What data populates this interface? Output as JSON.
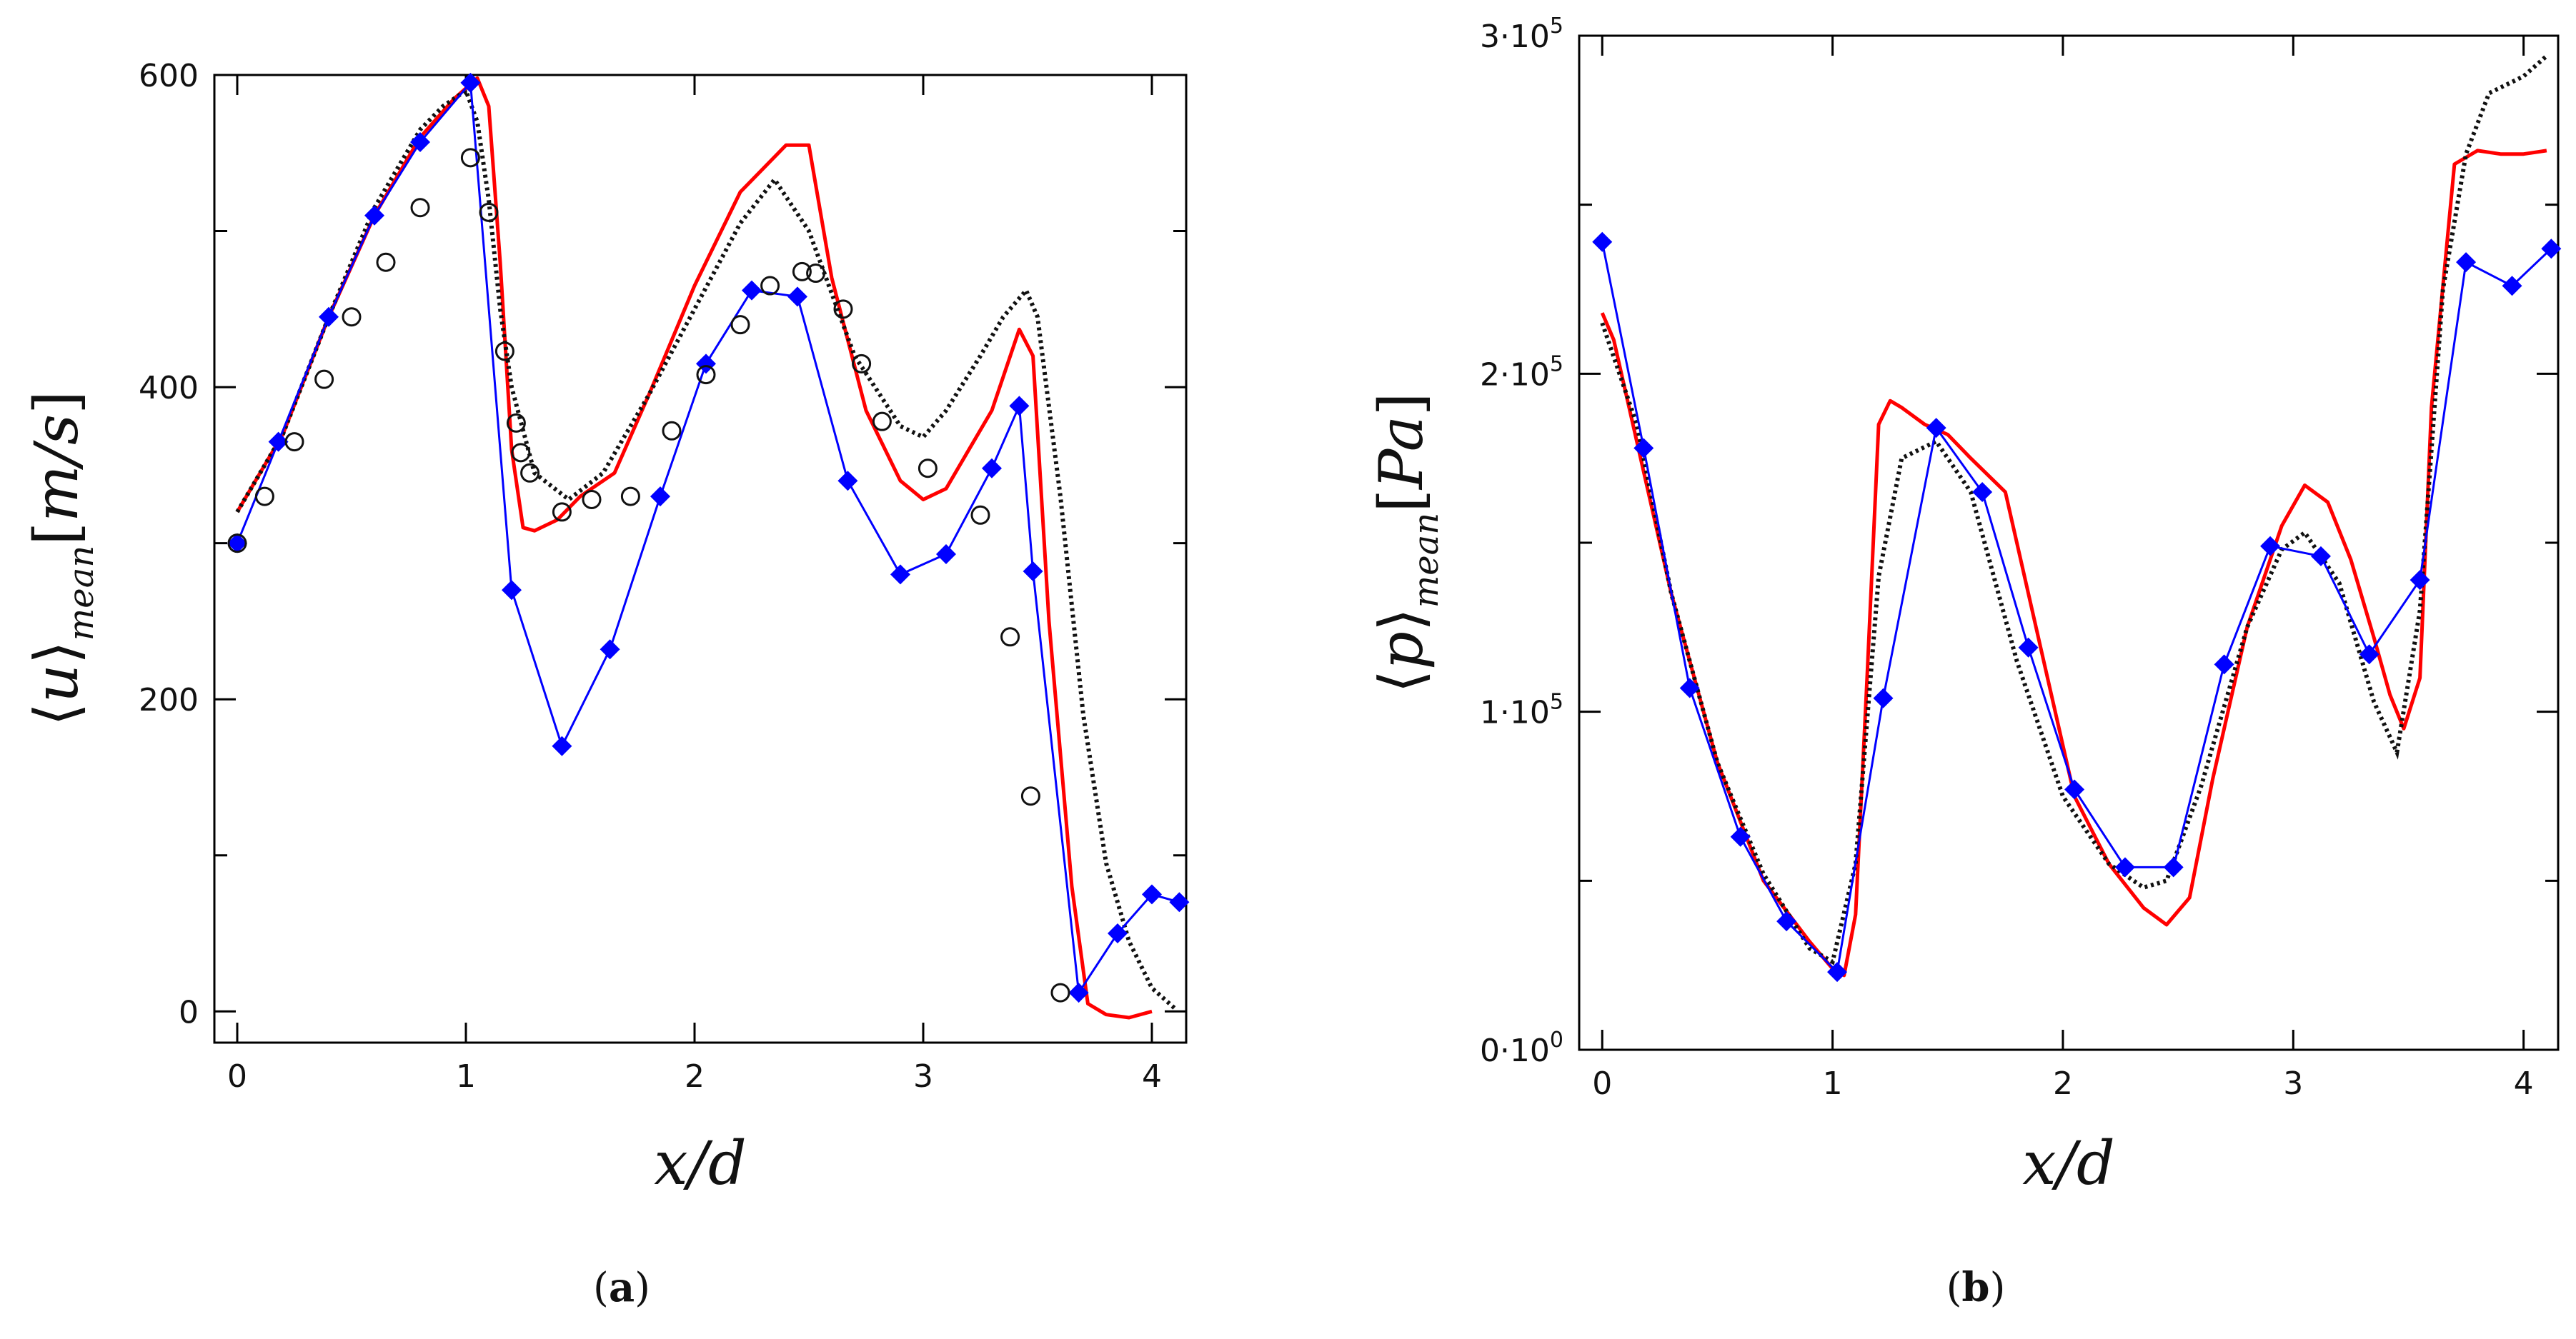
{
  "chart_data": [
    {
      "type": "line",
      "panel_label": "a",
      "xlabel": "x/d",
      "ylabel_symbol": "u",
      "ylabel_sub": "mean",
      "ylabel_unit": "m/s",
      "xlim": [
        -0.1,
        4.15
      ],
      "ylim": [
        -20,
        600
      ],
      "xticks": [
        "0",
        "1",
        "2",
        "3",
        "4"
      ],
      "xtick_values": [
        0,
        1,
        2,
        3,
        4
      ],
      "yticks": [
        "0",
        "200",
        "400",
        "600"
      ],
      "ytick_values": [
        0,
        200,
        400,
        600
      ],
      "minor_yticks": [
        100,
        300,
        500
      ],
      "series": [
        {
          "name": "red",
          "style": "solid",
          "color": "#ff0000",
          "x": [
            0.0,
            0.2,
            0.4,
            0.6,
            0.8,
            0.95,
            1.05,
            1.1,
            1.15,
            1.2,
            1.25,
            1.3,
            1.4,
            1.5,
            1.65,
            1.8,
            2.0,
            2.2,
            2.4,
            2.5,
            2.6,
            2.75,
            2.9,
            3.0,
            3.1,
            3.2,
            3.3,
            3.42,
            3.48,
            3.55,
            3.65,
            3.72,
            3.8,
            3.9,
            4.0
          ],
          "y": [
            320,
            370,
            445,
            510,
            560,
            585,
            598,
            580,
            480,
            360,
            310,
            308,
            315,
            330,
            345,
            395,
            465,
            525,
            555,
            555,
            470,
            385,
            340,
            328,
            335,
            360,
            385,
            437,
            420,
            250,
            80,
            5,
            -2,
            -4,
            0
          ]
        },
        {
          "name": "black dotted",
          "style": "dotted",
          "color": "#111111",
          "x": [
            0.0,
            0.2,
            0.4,
            0.6,
            0.8,
            0.9,
            1.0,
            1.05,
            1.1,
            1.15,
            1.2,
            1.3,
            1.45,
            1.6,
            1.8,
            2.0,
            2.2,
            2.35,
            2.5,
            2.7,
            2.9,
            3.0,
            3.1,
            3.25,
            3.35,
            3.45,
            3.5,
            3.6,
            3.7,
            3.8,
            3.9,
            4.0,
            4.1
          ],
          "y": [
            320,
            370,
            445,
            515,
            565,
            580,
            590,
            570,
            520,
            450,
            400,
            345,
            328,
            345,
            395,
            450,
            505,
            533,
            500,
            420,
            375,
            368,
            385,
            420,
            445,
            462,
            445,
            330,
            190,
            95,
            45,
            15,
            2
          ]
        },
        {
          "name": "blue diamonds",
          "style": "line-marker",
          "marker": "diamond",
          "color": "#0000ff",
          "x": [
            0.0,
            0.18,
            0.4,
            0.6,
            0.8,
            1.02,
            1.2,
            1.42,
            1.63,
            1.85,
            2.05,
            2.25,
            2.45,
            2.67,
            2.9,
            3.1,
            3.3,
            3.42,
            3.48,
            3.68,
            3.85,
            4.0,
            4.12
          ],
          "y": [
            300,
            365,
            445,
            510,
            557,
            595,
            270,
            170,
            232,
            330,
            415,
            462,
            458,
            340,
            280,
            293,
            348,
            388,
            282,
            12,
            50,
            75,
            70
          ]
        },
        {
          "name": "circles",
          "style": "marker",
          "marker": "circle",
          "color": "#111111",
          "x": [
            0.0,
            0.12,
            0.25,
            0.38,
            0.5,
            0.65,
            0.8,
            1.02,
            1.1,
            1.17,
            1.22,
            1.24,
            1.28,
            1.42,
            1.55,
            1.72,
            1.9,
            2.05,
            2.2,
            2.33,
            2.47,
            2.53,
            2.65,
            2.73,
            2.82,
            3.02,
            3.25,
            3.38,
            3.47,
            3.6
          ],
          "y": [
            300,
            330,
            365,
            405,
            445,
            480,
            515,
            547,
            512,
            423,
            377,
            358,
            345,
            320,
            328,
            330,
            372,
            408,
            440,
            465,
            474,
            473,
            450,
            415,
            378,
            348,
            318,
            240,
            138,
            12
          ]
        }
      ]
    },
    {
      "type": "line",
      "panel_label": "b",
      "xlabel": "x/d",
      "ylabel_symbol": "p",
      "ylabel_sub": "mean",
      "ylabel_unit": "Pa",
      "xlim": [
        -0.1,
        4.15
      ],
      "ylim": [
        0,
        300000
      ],
      "xticks": [
        "0",
        "1",
        "2",
        "3",
        "4"
      ],
      "xtick_values": [
        0,
        1,
        2,
        3,
        4
      ],
      "yticks": [
        {
          "value": 0,
          "base": "0·10",
          "exp": "0"
        },
        {
          "value": 100000,
          "base": "1·10",
          "exp": "5"
        },
        {
          "value": 200000,
          "base": "2·10",
          "exp": "5"
        },
        {
          "value": 300000,
          "base": "3·10",
          "exp": "5"
        }
      ],
      "minor_yticks": [
        50000,
        150000,
        250000
      ],
      "series": [
        {
          "name": "red",
          "style": "solid",
          "color": "#ff0000",
          "x": [
            0.0,
            0.05,
            0.15,
            0.3,
            0.5,
            0.7,
            0.9,
            1.0,
            1.05,
            1.1,
            1.15,
            1.2,
            1.25,
            1.3,
            1.4,
            1.5,
            1.6,
            1.75,
            1.9,
            2.05,
            2.2,
            2.35,
            2.45,
            2.55,
            2.65,
            2.8,
            2.95,
            3.05,
            3.15,
            3.25,
            3.35,
            3.42,
            3.48,
            3.55,
            3.6,
            3.7,
            3.8,
            3.9,
            4.0,
            4.1
          ],
          "y": [
            218000,
            210000,
            180000,
            135000,
            85000,
            50000,
            32000,
            24000,
            22000,
            40000,
            110000,
            185000,
            192000,
            190000,
            185000,
            182000,
            175000,
            165000,
            120000,
            75000,
            55000,
            42000,
            37000,
            45000,
            80000,
            125000,
            155000,
            167000,
            162000,
            145000,
            122000,
            105000,
            95000,
            110000,
            190000,
            262000,
            266000,
            265000,
            265000,
            266000
          ]
        },
        {
          "name": "black dotted",
          "style": "dotted",
          "color": "#111111",
          "x": [
            0.0,
            0.15,
            0.3,
            0.5,
            0.7,
            0.9,
            1.0,
            1.1,
            1.2,
            1.3,
            1.45,
            1.6,
            1.8,
            2.0,
            2.2,
            2.35,
            2.45,
            2.6,
            2.8,
            2.95,
            3.05,
            3.2,
            3.35,
            3.45,
            3.55,
            3.65,
            3.75,
            3.85,
            4.0,
            4.1
          ],
          "y": [
            215000,
            185000,
            135000,
            85000,
            52000,
            30000,
            26000,
            55000,
            140000,
            175000,
            180000,
            165000,
            115000,
            75000,
            55000,
            48000,
            50000,
            78000,
            125000,
            148000,
            153000,
            138000,
            103000,
            88000,
            130000,
            225000,
            265000,
            283000,
            288000,
            294000
          ]
        },
        {
          "name": "blue diamonds",
          "style": "line-marker",
          "marker": "diamond",
          "color": "#0000ff",
          "x": [
            0.0,
            0.18,
            0.38,
            0.6,
            0.8,
            1.02,
            1.22,
            1.45,
            1.65,
            1.85,
            2.05,
            2.27,
            2.48,
            2.7,
            2.9,
            3.12,
            3.33,
            3.55,
            3.75,
            3.95,
            4.12
          ],
          "y": [
            239000,
            178000,
            107000,
            63000,
            38000,
            23000,
            104000,
            184000,
            165000,
            119000,
            77000,
            54000,
            54000,
            114000,
            149000,
            146000,
            117000,
            139000,
            233000,
            226000,
            237000
          ]
        }
      ]
    }
  ]
}
